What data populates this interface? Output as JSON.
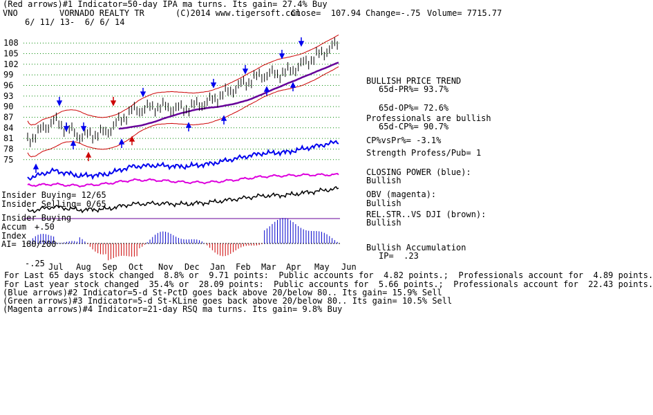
{
  "header": {
    "line1": "(Red arrows)#1 Indicator=50-day IPA ma turns. Its gain= 27.4% Buy",
    "ticker": "VNO",
    "company": "VORNADO REALTY TR",
    "source": "(C)2014 www.tigersoft.com",
    "close": "Close=  107.94",
    "change": "Change=-.75",
    "volume": "Volume= 7715.77",
    "date_range": "6/ 11/ 13-  6/ 6/ 14"
  },
  "colors": {
    "price": "#000000",
    "bands": "#cc0000",
    "ma": "#660099",
    "closing_power": "#0000ee",
    "obv": "#dd00dd",
    "rel_str": "#000000",
    "accum": "#0000cc",
    "accum_neg": "#cc0000",
    "grid": "#008800",
    "arrow_red": "#cc0000",
    "arrow_blue": "#0000ee"
  },
  "chart_data": {
    "type": "line",
    "x_ticks": [
      "Jul",
      "Aug",
      "Sep",
      "Oct",
      "Nov",
      "Dec",
      "Jan",
      "Feb",
      "Mar",
      "Apr",
      "May",
      "Jun"
    ],
    "y_ticks": [
      "108",
      "105",
      "102",
      "99",
      "96",
      "93",
      "90",
      "87",
      "84",
      "81",
      "78",
      "75"
    ],
    "ylim": [
      73,
      110
    ],
    "series": [
      {
        "name": "",
        "approx_months": [
          "Jun",
          "Jul",
          "Aug",
          "Sep",
          "Oct",
          "Nov",
          "Dec",
          "Jan",
          "Feb",
          "Mar",
          "Apr",
          "May",
          "Jun"
        ],
        "values": [
          80,
          86,
          82,
          83,
          89,
          90,
          89,
          91,
          95,
          99,
          100,
          104,
          108
        ]
      }
    ],
    "indicators": {
      "insider_buying_ratio": "Insider Buying= 12/65",
      "insider_selling_ratio": "Insider Selling= 0/65",
      "accum_label_1": "Insider Buying",
      "accum_label_2": "Accum",
      "accum_label_3": "Index",
      "accum_plus": "+.50",
      "accum_ai": "AI= 180/200",
      "accum_minus": "-.25"
    }
  },
  "right_panel": {
    "trend_title": "BULLISH PRICE TREND",
    "pr": "65d-PR%= 93.7%",
    "op": "65d-OP%= 72.6%",
    "pros": "Professionals are bullish",
    "cp": "65d-CP%= 90.7%",
    "cpvs": "CP%vsPr%= -3.1%",
    "strength": "Strength Profess/Pub= 1",
    "closing_power_title": "CLOSING POWER (blue):",
    "closing_power_val": "Bullish",
    "obv_title": "OBV (magenta):",
    "obv_val": "Bullish",
    "rel_title": "REL.STR..VS DJI (brown):",
    "rel_val": "Bullish",
    "accum_title": "Bullish Accumulation",
    "ip": "IP=  .23"
  },
  "footer": {
    "line1": "For Last 65 days stock changed  8.8% or  9.71 points:  Public accounts for  4.82 points.;  Professionals account for  4.89 points.",
    "line2": "For Last year stock changed  35.4% or  28.09 points:  Public accounts for  5.66 points.;  Professionals account for  22.43 points.",
    "line3": "(Blue arrows)#2 Indicator=5-d St-PctD goes back above 20/below 80.. Its gain= 15.9% Sell",
    "line4": "(Green arrows)#3 Indicator=5-d St-KLine goes back above 20/below 80.. Its gain= 10.5% Sell",
    "line5": "(Magenta arrows)#4 Indicator=21-day RSQ ma turns. Its gain= 9.8% Buy"
  }
}
